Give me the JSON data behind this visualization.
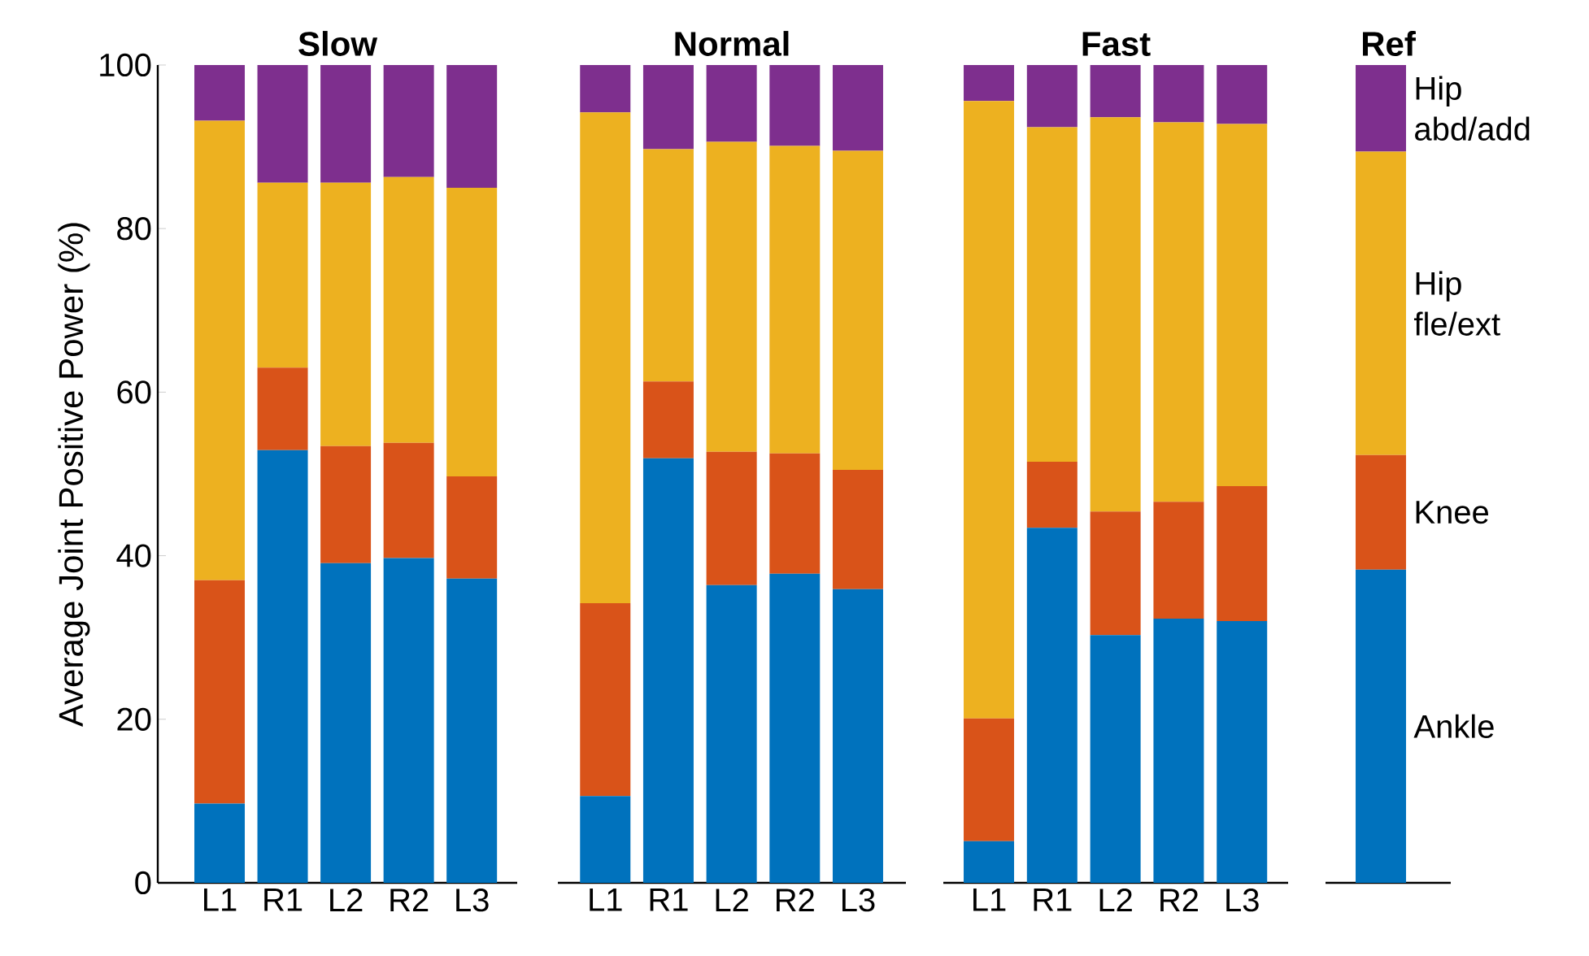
{
  "chart_data": [
    {
      "type": "bar",
      "title": "Slow",
      "ylabel": "Average Joint Positive Power (%)",
      "stacked": true,
      "categories": [
        "L1",
        "R1",
        "L2",
        "R2",
        "L3"
      ],
      "ylim": [
        0,
        100
      ],
      "yticks": [
        0,
        20,
        40,
        60,
        80,
        100
      ],
      "series": [
        {
          "color": "#0072bd",
          "values": [
            9.7,
            52.9,
            39.1,
            39.7,
            37.2
          ]
        },
        {
          "color": "#d95319",
          "values": [
            27.3,
            10.1,
            14.3,
            14.1,
            12.5
          ]
        },
        {
          "color": "#edb120",
          "values": [
            56.2,
            22.6,
            32.2,
            32.5,
            35.3
          ]
        },
        {
          "color": "#7e2f8e",
          "values": [
            6.8,
            14.4,
            14.4,
            13.7,
            15.0
          ]
        }
      ]
    },
    {
      "type": "bar",
      "title": "Normal",
      "stacked": true,
      "categories": [
        "L1",
        "R1",
        "L2",
        "R2",
        "L3"
      ],
      "ylim": [
        0,
        100
      ],
      "tick_labels": "x",
      "series": [
        {
          "color": "#0072bd",
          "values": [
            10.6,
            51.9,
            36.4,
            37.8,
            35.9
          ]
        },
        {
          "color": "#d95319",
          "values": [
            23.6,
            9.4,
            16.3,
            14.7,
            14.6
          ]
        },
        {
          "color": "#edb120",
          "values": [
            60.0,
            28.4,
            37.9,
            37.6,
            39.0
          ]
        },
        {
          "color": "#7e2f8e",
          "values": [
            5.8,
            10.3,
            9.4,
            9.9,
            10.5
          ]
        }
      ]
    },
    {
      "type": "bar",
      "title": "Fast",
      "stacked": true,
      "categories": [
        "L1",
        "R1",
        "L2",
        "R2",
        "L3"
      ],
      "ylim": [
        0,
        100
      ],
      "tick_labels": "x",
      "series": [
        {
          "color": "#0072bd",
          "values": [
            5.1,
            43.4,
            30.3,
            32.3,
            32.0
          ]
        },
        {
          "color": "#d95319",
          "values": [
            15.0,
            8.1,
            15.1,
            14.3,
            16.5
          ]
        },
        {
          "color": "#edb120",
          "values": [
            75.5,
            40.9,
            48.2,
            46.4,
            44.3
          ]
        },
        {
          "color": "#7e2f8e",
          "values": [
            4.4,
            7.6,
            6.4,
            7.0,
            7.2
          ]
        }
      ]
    },
    {
      "type": "bar",
      "title": "Ref",
      "stacked": true,
      "categories": [
        null
      ],
      "ylim": [
        0,
        100
      ],
      "tick_labels": false,
      "series": [
        {
          "name": "Ankle",
          "color": "#0072bd",
          "values": [
            38.3
          ]
        },
        {
          "name": "Knee",
          "color": "#d95319",
          "values": [
            14.0
          ]
        },
        {
          "name": "Hip fle/ext",
          "color": "#edb120",
          "values": [
            37.1
          ]
        },
        {
          "name": "Hip abd/add",
          "color": "#7e2f8e",
          "values": [
            10.6
          ]
        }
      ]
    }
  ]
}
